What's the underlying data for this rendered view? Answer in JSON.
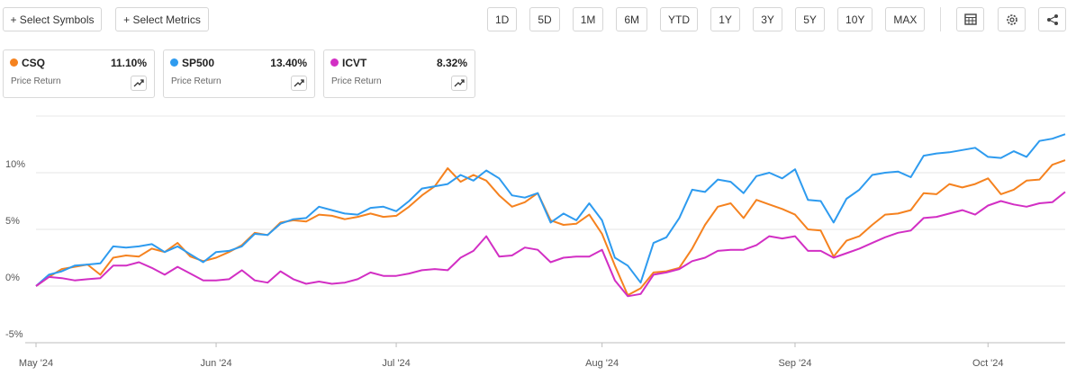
{
  "toolbar": {
    "actions": [
      "+ Select Symbols",
      "+ Select Metrics"
    ],
    "ranges": [
      "1D",
      "5D",
      "1M",
      "6M",
      "YTD",
      "1Y",
      "3Y",
      "5Y",
      "10Y",
      "MAX"
    ]
  },
  "chart_data": {
    "type": "line",
    "categories": [
      "May '24",
      null,
      null,
      null,
      null,
      null,
      null,
      null,
      null,
      null,
      null,
      null,
      null,
      null,
      "Jun '24",
      null,
      null,
      null,
      null,
      null,
      null,
      null,
      null,
      null,
      null,
      null,
      null,
      null,
      "Jul '24",
      null,
      null,
      null,
      null,
      null,
      null,
      null,
      null,
      null,
      null,
      null,
      null,
      null,
      null,
      null,
      "Aug '24",
      null,
      null,
      null,
      null,
      null,
      null,
      null,
      null,
      null,
      null,
      null,
      null,
      null,
      null,
      "Sep '24",
      null,
      null,
      null,
      null,
      null,
      null,
      null,
      null,
      null,
      null,
      null,
      null,
      null,
      null,
      "Oct '24",
      null,
      null,
      null,
      null,
      null,
      null
    ],
    "series": [
      {
        "name": "CSQ",
        "color": "#f5821f",
        "change_label": "11.10%",
        "metric": "Price Return",
        "values": [
          0,
          0.8,
          1.5,
          1.7,
          1.9,
          1.0,
          2.5,
          2.7,
          2.6,
          3.3,
          3.0,
          3.8,
          2.6,
          2.2,
          2.5,
          3.0,
          3.6,
          4.7,
          4.5,
          5.6,
          5.8,
          5.7,
          6.3,
          6.2,
          5.9,
          6.1,
          6.4,
          6.1,
          6.2,
          7.0,
          8.0,
          8.8,
          10.4,
          9.2,
          9.8,
          9.3,
          8.0,
          7.0,
          7.4,
          8.2,
          5.8,
          5.4,
          5.5,
          6.3,
          4.6,
          1.8,
          -0.8,
          -0.2,
          1.2,
          1.3,
          1.6,
          3.3,
          5.4,
          7.0,
          7.3,
          6.0,
          7.6,
          7.2,
          6.8,
          6.3,
          5.0,
          4.9,
          2.6,
          4.0,
          4.4,
          5.4,
          6.3,
          6.4,
          6.7,
          8.2,
          8.1,
          9.0,
          8.7,
          9.0,
          9.5,
          8.1,
          8.5,
          9.3,
          9.4,
          10.7,
          11.1
        ]
      },
      {
        "name": "SP500",
        "color": "#2e9bef",
        "change_label": "13.40%",
        "metric": "Price Return",
        "values": [
          0,
          1.0,
          1.3,
          1.8,
          1.9,
          2.0,
          3.5,
          3.4,
          3.5,
          3.7,
          3.0,
          3.5,
          2.8,
          2.1,
          3.0,
          3.1,
          3.5,
          4.6,
          4.5,
          5.5,
          5.9,
          6.0,
          7.0,
          6.7,
          6.4,
          6.3,
          6.9,
          7.0,
          6.6,
          7.5,
          8.6,
          8.8,
          9.0,
          9.8,
          9.3,
          10.2,
          9.5,
          8.0,
          7.8,
          8.2,
          5.6,
          6.4,
          5.8,
          7.3,
          5.8,
          2.5,
          1.8,
          0.3,
          3.8,
          4.3,
          6.0,
          8.5,
          8.3,
          9.4,
          9.2,
          8.2,
          9.7,
          10.0,
          9.5,
          10.3,
          7.6,
          7.5,
          5.6,
          7.7,
          8.5,
          9.8,
          10.0,
          10.1,
          9.6,
          11.5,
          11.7,
          11.8,
          12.0,
          12.2,
          11.4,
          11.3,
          11.9,
          11.4,
          12.8,
          13.0,
          13.4
        ]
      },
      {
        "name": "ICVT",
        "color": "#d22fc4",
        "change_label": "8.32%",
        "metric": "Price Return",
        "values": [
          0,
          0.8,
          0.7,
          0.5,
          0.6,
          0.7,
          1.8,
          1.8,
          2.1,
          1.6,
          1.0,
          1.7,
          1.1,
          0.5,
          0.5,
          0.6,
          1.4,
          0.5,
          0.3,
          1.3,
          0.6,
          0.2,
          0.4,
          0.2,
          0.3,
          0.6,
          1.2,
          0.9,
          0.9,
          1.1,
          1.4,
          1.5,
          1.4,
          2.5,
          3.1,
          4.4,
          2.6,
          2.7,
          3.4,
          3.2,
          2.1,
          2.5,
          2.6,
          2.6,
          3.2,
          0.5,
          -0.9,
          -0.7,
          1.0,
          1.2,
          1.5,
          2.2,
          2.5,
          3.1,
          3.2,
          3.2,
          3.6,
          4.4,
          4.2,
          4.4,
          3.1,
          3.1,
          2.5,
          2.9,
          3.3,
          3.8,
          4.3,
          4.7,
          4.9,
          6.0,
          6.1,
          6.4,
          6.7,
          6.3,
          7.1,
          7.5,
          7.2,
          7.0,
          7.3,
          7.4,
          8.3
        ]
      }
    ],
    "ylim": [
      -5,
      15
    ],
    "yticks": [
      {
        "value": -5,
        "label": "-5%"
      },
      {
        "value": 0,
        "label": "0%"
      },
      {
        "value": 5,
        "label": "5%"
      },
      {
        "value": 10,
        "label": "10%"
      }
    ],
    "grid": true
  }
}
